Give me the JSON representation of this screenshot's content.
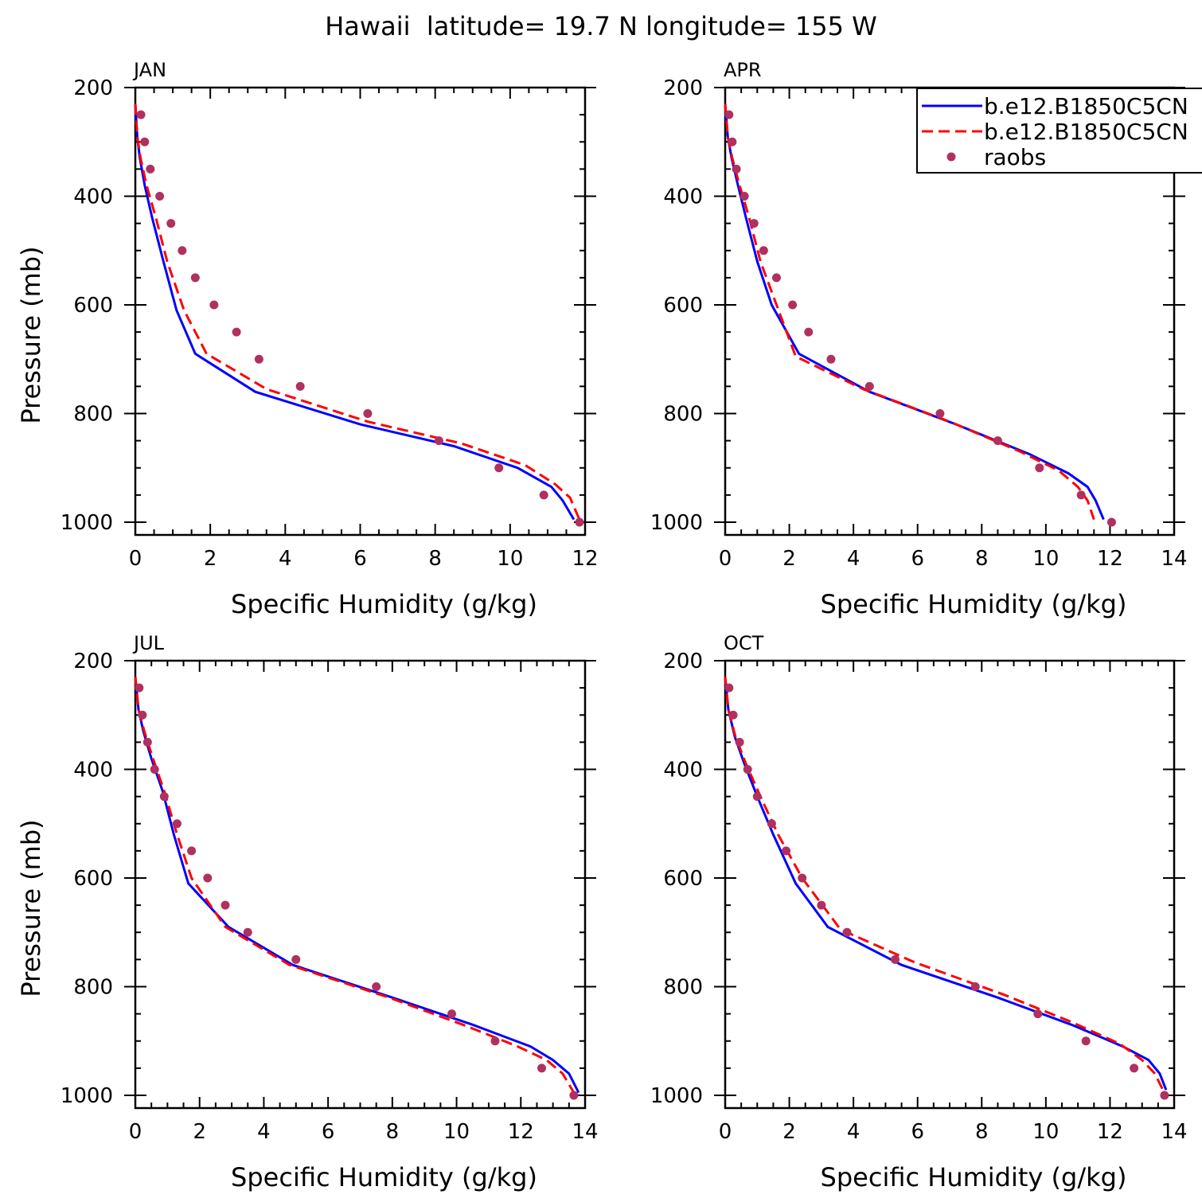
{
  "title": "Hawaii  latitude= 19.7 N longitude= 155 W",
  "colors": {
    "model1": "#0000ff",
    "model2": "#ff0000",
    "raobs": "#b03060",
    "axis": "#000000"
  },
  "legend": {
    "entries": [
      "b.e12.B1850C5CN",
      "b.e12.B1850C5CN",
      "raobs"
    ],
    "styles": [
      "solid",
      "dashed",
      "dots"
    ]
  },
  "chart_data": [
    {
      "type": "line",
      "panel": "JAN",
      "xlabel": "Specific Humidity (g/kg)",
      "ylabel": "Pressure (mb)",
      "xlim": [
        0,
        12
      ],
      "ylim": [
        1000,
        200
      ],
      "y_inverted": true,
      "grid": false,
      "xticks": [
        0,
        2,
        4,
        6,
        8,
        10,
        12
      ],
      "yticks": [
        200,
        400,
        600,
        800,
        1000
      ],
      "series": [
        {
          "name": "b.e12.B1850C5CN",
          "style": "solid",
          "x": [
            0.0,
            0.05,
            0.12,
            0.25,
            0.45,
            0.75,
            1.1,
            1.6,
            3.2,
            6.0,
            8.5,
            10.2,
            11.1,
            11.4,
            11.7
          ],
          "y": [
            230,
            290,
            330,
            380,
            440,
            520,
            610,
            690,
            760,
            820,
            860,
            900,
            935,
            960,
            995
          ]
        },
        {
          "name": "b.e12.B1850C5CN",
          "style": "dashed",
          "x": [
            0.0,
            0.05,
            0.14,
            0.3,
            0.55,
            0.85,
            1.3,
            1.9,
            3.5,
            6.2,
            8.7,
            10.4,
            11.2,
            11.6,
            11.85
          ],
          "y": [
            230,
            290,
            330,
            380,
            440,
            520,
            610,
            690,
            755,
            815,
            855,
            895,
            930,
            955,
            995
          ]
        },
        {
          "name": "raobs",
          "style": "dots",
          "x": [
            0.15,
            0.25,
            0.4,
            0.65,
            0.95,
            1.25,
            1.6,
            2.1,
            2.7,
            3.3,
            4.4,
            6.2,
            8.1,
            9.7,
            10.9,
            11.85
          ],
          "y": [
            250,
            300,
            350,
            400,
            450,
            500,
            550,
            600,
            650,
            700,
            750,
            800,
            850,
            900,
            950,
            1000
          ]
        }
      ]
    },
    {
      "type": "line",
      "panel": "APR",
      "xlabel": "Specific Humidity (g/kg)",
      "ylabel": "",
      "xlim": [
        0,
        14
      ],
      "ylim": [
        1000,
        200
      ],
      "y_inverted": true,
      "grid": false,
      "xticks": [
        0,
        2,
        4,
        6,
        8,
        10,
        12,
        14
      ],
      "yticks": [
        200,
        400,
        600,
        800,
        1000
      ],
      "series": [
        {
          "name": "b.e12.B1850C5CN",
          "style": "solid",
          "x": [
            0.0,
            0.08,
            0.2,
            0.4,
            0.65,
            1.0,
            1.45,
            2.3,
            4.5,
            7.2,
            9.5,
            10.7,
            11.3,
            11.55,
            11.8
          ],
          "y": [
            230,
            290,
            330,
            380,
            440,
            520,
            600,
            690,
            760,
            820,
            875,
            910,
            935,
            960,
            995
          ]
        },
        {
          "name": "b.e12.B1850C5CN",
          "style": "dashed",
          "x": [
            0.0,
            0.08,
            0.22,
            0.45,
            0.75,
            1.1,
            1.6,
            2.2,
            4.3,
            7.0,
            9.2,
            10.4,
            11.0,
            11.3,
            11.5
          ],
          "y": [
            230,
            290,
            330,
            380,
            440,
            520,
            600,
            695,
            755,
            815,
            870,
            905,
            935,
            960,
            995
          ]
        },
        {
          "name": "raobs",
          "style": "dots",
          "x": [
            0.12,
            0.22,
            0.35,
            0.6,
            0.9,
            1.2,
            1.6,
            2.1,
            2.6,
            3.3,
            4.5,
            6.7,
            8.5,
            9.8,
            11.1,
            12.05
          ],
          "y": [
            250,
            300,
            350,
            400,
            450,
            500,
            550,
            600,
            650,
            700,
            750,
            800,
            850,
            900,
            950,
            1000
          ]
        }
      ]
    },
    {
      "type": "line",
      "panel": "JUL",
      "xlabel": "Specific Humidity (g/kg)",
      "ylabel": "Pressure (mb)",
      "xlim": [
        0,
        14
      ],
      "ylim": [
        1000,
        200
      ],
      "y_inverted": true,
      "grid": false,
      "xticks": [
        0,
        2,
        4,
        6,
        8,
        10,
        12,
        14
      ],
      "yticks": [
        200,
        400,
        600,
        800,
        1000
      ],
      "series": [
        {
          "name": "b.e12.B1850C5CN",
          "style": "solid",
          "x": [
            0.0,
            0.1,
            0.25,
            0.5,
            0.85,
            1.2,
            1.65,
            2.9,
            4.9,
            8.0,
            10.5,
            12.3,
            13.0,
            13.5,
            13.8
          ],
          "y": [
            230,
            290,
            330,
            380,
            440,
            520,
            610,
            690,
            760,
            820,
            870,
            910,
            935,
            960,
            995
          ]
        },
        {
          "name": "b.e12.B1850C5CN",
          "style": "dashed",
          "x": [
            0.0,
            0.1,
            0.28,
            0.55,
            0.9,
            1.3,
            1.75,
            2.8,
            4.8,
            7.9,
            10.2,
            11.9,
            12.8,
            13.3,
            13.65
          ],
          "y": [
            230,
            290,
            330,
            380,
            440,
            520,
            600,
            690,
            760,
            820,
            870,
            910,
            935,
            960,
            995
          ]
        },
        {
          "name": "raobs",
          "style": "dots",
          "x": [
            0.12,
            0.22,
            0.38,
            0.6,
            0.9,
            1.3,
            1.75,
            2.25,
            2.8,
            3.5,
            5.0,
            7.5,
            9.85,
            11.2,
            12.65,
            13.65
          ],
          "y": [
            250,
            300,
            350,
            400,
            450,
            500,
            550,
            600,
            650,
            700,
            750,
            800,
            850,
            900,
            950,
            1000
          ]
        }
      ]
    },
    {
      "type": "line",
      "panel": "OCT",
      "xlabel": "Specific Humidity (g/kg)",
      "ylabel": "",
      "xlim": [
        0,
        14
      ],
      "ylim": [
        1000,
        200
      ],
      "y_inverted": true,
      "grid": false,
      "xticks": [
        0,
        2,
        4,
        6,
        8,
        10,
        12,
        14
      ],
      "yticks": [
        200,
        400,
        600,
        800,
        1000
      ],
      "series": [
        {
          "name": "b.e12.B1850C5CN",
          "style": "solid",
          "x": [
            0.0,
            0.1,
            0.3,
            0.6,
            1.0,
            1.5,
            2.2,
            3.2,
            5.5,
            8.5,
            10.8,
            12.4,
            13.2,
            13.55,
            13.75
          ],
          "y": [
            230,
            290,
            340,
            390,
            450,
            520,
            610,
            690,
            760,
            820,
            870,
            910,
            935,
            960,
            990
          ]
        },
        {
          "name": "b.e12.B1850C5CN",
          "style": "dashed",
          "x": [
            0.0,
            0.1,
            0.32,
            0.65,
            1.1,
            1.65,
            2.4,
            3.6,
            5.9,
            8.7,
            10.8,
            12.3,
            13.0,
            13.4,
            13.65
          ],
          "y": [
            230,
            290,
            340,
            390,
            450,
            520,
            600,
            695,
            755,
            815,
            865,
            905,
            935,
            960,
            990
          ]
        },
        {
          "name": "raobs",
          "style": "dots",
          "x": [
            0.12,
            0.25,
            0.45,
            0.7,
            1.0,
            1.45,
            1.9,
            2.4,
            3.0,
            3.8,
            5.3,
            7.8,
            9.75,
            11.25,
            12.75,
            13.7
          ],
          "y": [
            250,
            300,
            350,
            400,
            450,
            500,
            550,
            600,
            650,
            700,
            750,
            800,
            850,
            900,
            950,
            1000
          ]
        }
      ]
    }
  ]
}
